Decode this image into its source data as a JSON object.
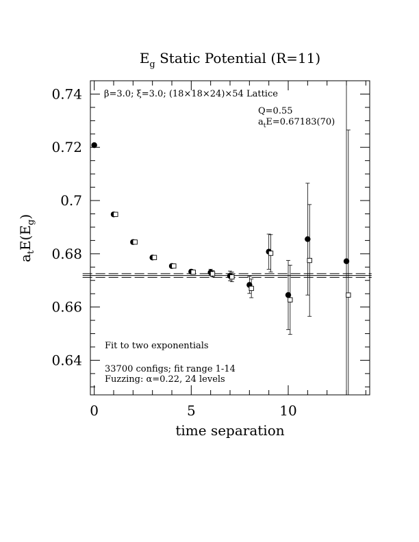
{
  "chart_data": {
    "type": "scatter",
    "title": "E_g Static Potential (R=11)",
    "title_main": "E",
    "title_sub": "g",
    "title_rest": " Static Potential (R=11)",
    "xlabel": "time separation",
    "ylabel": "a_tE(E_g)",
    "ylabel_parts": {
      "a": "a",
      "t": "t",
      "mid": "E(E",
      "g": "g",
      "end": ")"
    },
    "xlim": [
      -0.2,
      14.2
    ],
    "ylim": [
      0.627,
      0.745
    ],
    "x_ticks": [
      0,
      5,
      10
    ],
    "x_tick_labels": [
      "0",
      "5",
      "10"
    ],
    "y_ticks": [
      0.64,
      0.66,
      0.68,
      0.7,
      0.72,
      0.74
    ],
    "y_tick_labels": [
      "0.64",
      "0.66",
      "0.68",
      "0.7",
      "0.72",
      "0.74"
    ],
    "grid": false,
    "annotations": {
      "lattice": "β=3.0; ξ=3.0; (18×18×24)×54 Lattice",
      "q_value": "Q=0.55",
      "energy_prefix": "a",
      "energy_sub": "t",
      "energy_rest": "E=0.67183(70)",
      "fit_type": "Fit to two exponentials",
      "configs": "33700 configs; fit range 1-14",
      "fuzzing": "Fuzzing: α=0.22, 24 levels"
    },
    "fit": {
      "value": 0.67183,
      "error": 0.0007,
      "range": [
        1,
        14
      ]
    },
    "series": [
      {
        "marker": "filled-circle",
        "points": [
          {
            "x": 0,
            "y": 0.7208,
            "err": 0.0003
          },
          {
            "x": 1,
            "y": 0.6948,
            "err": 0.0004
          },
          {
            "x": 2,
            "y": 0.6844,
            "err": 0.0004
          },
          {
            "x": 3,
            "y": 0.6786,
            "err": 0.0005
          },
          {
            "x": 4,
            "y": 0.6754,
            "err": 0.0006
          },
          {
            "x": 5,
            "y": 0.6733,
            "err": 0.0007
          },
          {
            "x": 6,
            "y": 0.673,
            "err": 0.0012
          },
          {
            "x": 7,
            "y": 0.6717,
            "err": 0.0018
          },
          {
            "x": 8,
            "y": 0.6683,
            "err": 0.0032
          },
          {
            "x": 9,
            "y": 0.6808,
            "err": 0.0066
          },
          {
            "x": 10,
            "y": 0.6645,
            "err": 0.013
          },
          {
            "x": 11,
            "y": 0.6855,
            "err": 0.021
          },
          {
            "x": 13,
            "y": 0.6772,
            "err": 0.068
          }
        ]
      },
      {
        "marker": "open-square",
        "points": [
          {
            "x": 1.1,
            "y": 0.6948,
            "err": 0.0004
          },
          {
            "x": 2.1,
            "y": 0.6844,
            "err": 0.0004
          },
          {
            "x": 3.1,
            "y": 0.6786,
            "err": 0.0005
          },
          {
            "x": 4.1,
            "y": 0.6754,
            "err": 0.0006
          },
          {
            "x": 5.1,
            "y": 0.6731,
            "err": 0.0007
          },
          {
            "x": 6.1,
            "y": 0.6725,
            "err": 0.0012
          },
          {
            "x": 7.1,
            "y": 0.6713,
            "err": 0.0018
          },
          {
            "x": 8.1,
            "y": 0.667,
            "err": 0.0035
          },
          {
            "x": 9.1,
            "y": 0.6802,
            "err": 0.007
          },
          {
            "x": 10.1,
            "y": 0.6627,
            "err": 0.013
          },
          {
            "x": 11.1,
            "y": 0.6775,
            "err": 0.021
          },
          {
            "x": 13.1,
            "y": 0.6645,
            "err": 0.062
          }
        ]
      }
    ]
  }
}
